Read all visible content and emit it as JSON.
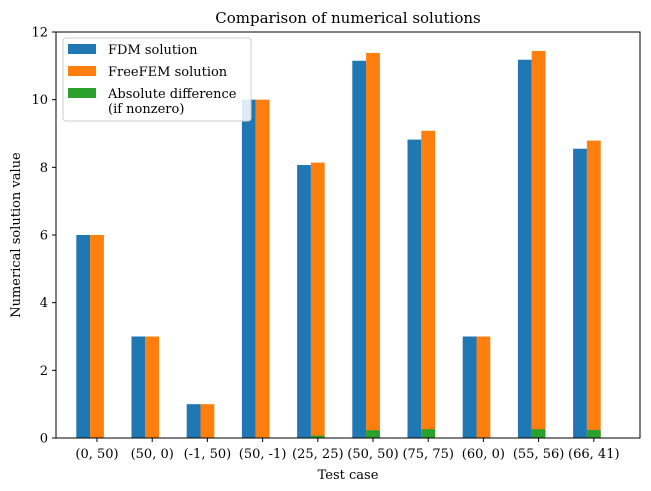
{
  "chart_data": {
    "type": "bar",
    "title": "Comparison of numerical solutions",
    "xlabel": "Test case",
    "ylabel": "Numerical solution value",
    "ylim": [
      0,
      12
    ],
    "yticks": [
      0,
      2,
      4,
      6,
      8,
      10,
      12
    ],
    "categories": [
      "(0, 50)",
      "(50, 0)",
      "(-1, 50)",
      "(50, -1)",
      "(25, 25)",
      "(50, 50)",
      "(75, 75)",
      "(60, 0)",
      "(55, 56)",
      "(66, 41)"
    ],
    "series": [
      {
        "name": "FDM solution",
        "color": "#1f77b4",
        "values": [
          6.0,
          3.0,
          1.0,
          10.0,
          8.07,
          11.15,
          8.82,
          3.0,
          11.18,
          8.55
        ]
      },
      {
        "name": "FreeFEM solution",
        "color": "#ff7f0e",
        "values": [
          6.0,
          3.0,
          1.0,
          10.0,
          8.14,
          11.38,
          9.08,
          3.0,
          11.44,
          8.79
        ]
      },
      {
        "name": "Absolute difference\n(if nonzero)",
        "color": "#2ca02c",
        "values": [
          0,
          0,
          0,
          0,
          0.07,
          0.23,
          0.26,
          0,
          0.26,
          0.24
        ]
      }
    ],
    "legend_position": "top-left",
    "grid": false
  }
}
